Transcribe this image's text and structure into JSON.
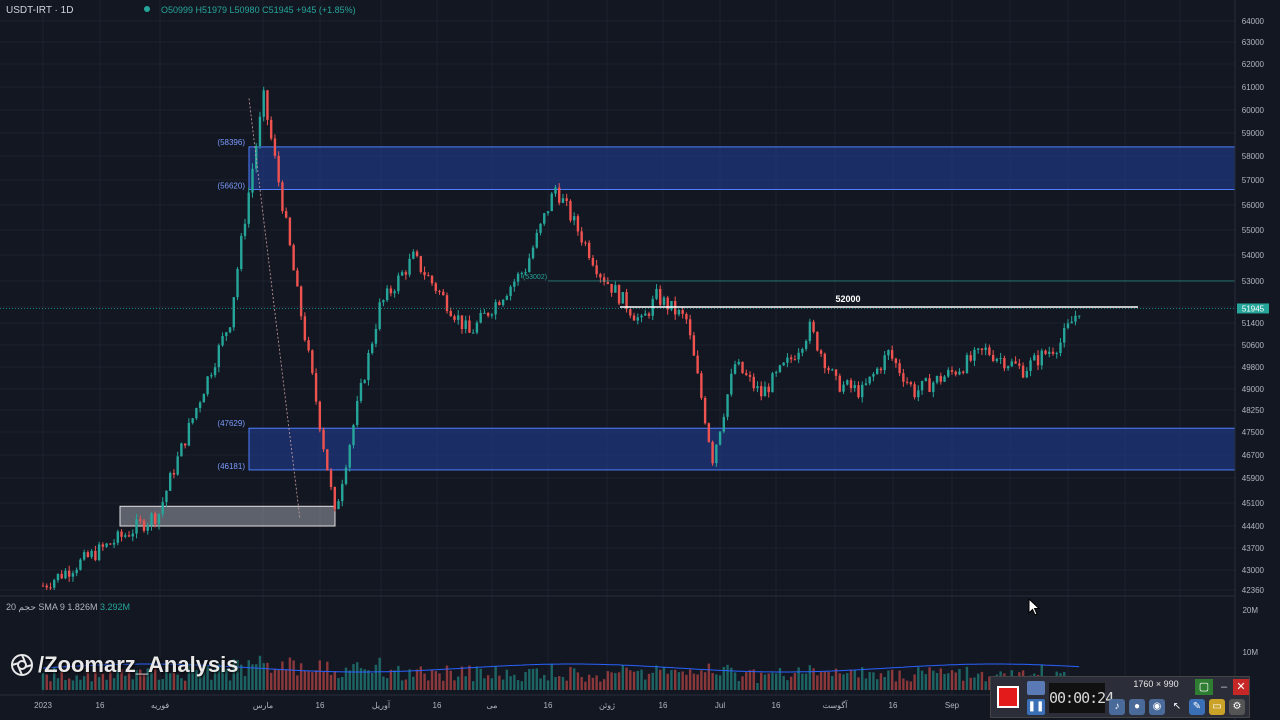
{
  "header": {
    "symbol": "USDT-IRT · 1D",
    "ohlc": "O50999 H51979 L50980 C51945 +945 (+1.85%)"
  },
  "volume_legend": {
    "label": "حجم 20 SMA 9",
    "value1": "1.826M",
    "value2": "3.292M"
  },
  "watermark": "/Zoomarz_Analysis",
  "recorder": {
    "timer": "00:00:24",
    "resolution": "1760 × 990"
  },
  "colors": {
    "background": "#131722",
    "up": "#26a69a",
    "down": "#ef5350",
    "zone": "#1f3a8a",
    "grid": "#1e222d"
  },
  "chart_data": {
    "type": "candlestick",
    "price_axis": [
      "64000",
      "63000",
      "62000",
      "61000",
      "60000",
      "59000",
      "58000",
      "57000",
      "56000",
      "55000",
      "54000",
      "53000",
      "52000",
      "51400",
      "50600",
      "49800",
      "49000",
      "48250",
      "47500",
      "46700",
      "45900",
      "45100",
      "44400",
      "43700",
      "43000",
      "42360"
    ],
    "volume_axis": [
      "20M",
      "10M"
    ],
    "x_axis": [
      "2023",
      "16",
      "فوریه",
      "مارس",
      "16",
      "آوریل",
      "16",
      "می",
      "16",
      "ژوئن",
      "16",
      "Jul",
      "16",
      "آگوست",
      "16",
      "Sep"
    ],
    "last_price": "51945",
    "zones": [
      {
        "top": 58396,
        "bottom": 56620,
        "top_label": "(58396)",
        "bottom_label": "(56620)"
      },
      {
        "top": 47629,
        "bottom": 46181,
        "top_label": "(47629)",
        "bottom_label": "(46181)"
      }
    ],
    "box": {
      "top": 45000,
      "bottom": 44400
    },
    "resistance": {
      "value": 52000,
      "label": "52000"
    },
    "level_53002": {
      "value": 53002,
      "label": "(53002)"
    },
    "key_points": [
      {
        "date": "2023-01-01",
        "close": 42500
      },
      {
        "date": "2023-02-01",
        "close": 44800
      },
      {
        "date": "2023-02-20",
        "close": 51500
      },
      {
        "date": "2023-03-01",
        "close": 60500
      },
      {
        "date": "2023-03-10",
        "close": 52500
      },
      {
        "date": "2023-03-20",
        "close": 44700
      },
      {
        "date": "2023-04-01",
        "close": 52000
      },
      {
        "date": "2023-04-10",
        "close": 53900
      },
      {
        "date": "2023-04-25",
        "close": 51000
      },
      {
        "date": "2023-05-10",
        "close": 53500
      },
      {
        "date": "2023-05-18",
        "close": 56700
      },
      {
        "date": "2023-05-30",
        "close": 53300
      },
      {
        "date": "2023-06-10",
        "close": 51400
      },
      {
        "date": "2023-06-14",
        "close": 52400
      },
      {
        "date": "2023-06-22",
        "close": 51500
      },
      {
        "date": "2023-06-29",
        "close": 46600
      },
      {
        "date": "2023-07-05",
        "close": 49900
      },
      {
        "date": "2023-07-12",
        "close": 48800
      },
      {
        "date": "2023-07-20",
        "close": 50100
      },
      {
        "date": "2023-07-25",
        "close": 51200
      },
      {
        "date": "2023-08-01",
        "close": 49200
      },
      {
        "date": "2023-08-08",
        "close": 48900
      },
      {
        "date": "2023-08-15",
        "close": 50300
      },
      {
        "date": "2023-08-22",
        "close": 48900
      },
      {
        "date": "2023-09-01",
        "close": 49600
      },
      {
        "date": "2023-09-10",
        "close": 50400
      },
      {
        "date": "2023-09-20",
        "close": 49700
      },
      {
        "date": "2023-09-30",
        "close": 50700
      },
      {
        "date": "2023-10-05",
        "close": 51945
      }
    ]
  }
}
